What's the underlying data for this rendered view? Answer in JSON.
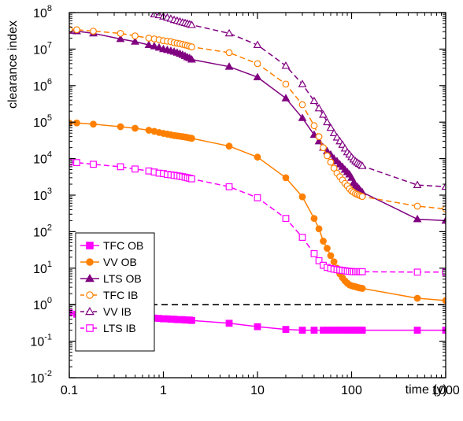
{
  "chart_data": {
    "type": "line",
    "xlabel": "time (y)",
    "ylabel": "clearance index",
    "xscale": "log",
    "yscale": "log",
    "xlim": [
      0.1,
      1000
    ],
    "ylim": [
      0.01,
      100000000
    ],
    "x_ticks": [
      {
        "value": 0.1,
        "label": "0.1"
      },
      {
        "value": 1,
        "label": "1"
      },
      {
        "value": 10,
        "label": "10"
      },
      {
        "value": 100,
        "label": "100"
      },
      {
        "value": 1000,
        "label": "1000"
      }
    ],
    "y_ticks": [
      {
        "value": 0.01,
        "base": "10",
        "exp": "-2"
      },
      {
        "value": 0.1,
        "base": "10",
        "exp": "-1"
      },
      {
        "value": 1,
        "base": "10",
        "exp": "0"
      },
      {
        "value": 10,
        "base": "10",
        "exp": "1"
      },
      {
        "value": 100,
        "base": "10",
        "exp": "2"
      },
      {
        "value": 1000,
        "base": "10",
        "exp": "3"
      },
      {
        "value": 10000,
        "base": "10",
        "exp": "4"
      },
      {
        "value": 100000,
        "base": "10",
        "exp": "5"
      },
      {
        "value": 1000000,
        "base": "10",
        "exp": "6"
      },
      {
        "value": 10000000,
        "base": "10",
        "exp": "7"
      },
      {
        "value": 100000000,
        "base": "10",
        "exp": "8"
      }
    ],
    "reference_line": {
      "y": 1,
      "style": "dashed",
      "color": "#000000"
    },
    "grid": false,
    "legend_position": "bottom-left",
    "series": [
      {
        "name": "TFC OB",
        "color": "#ff00ff",
        "marker": "square",
        "filled": true,
        "dashed": false,
        "x": [
          0.1,
          0.12,
          0.18,
          0.35,
          0.5,
          0.7,
          0.8,
          0.9,
          1.0,
          1.1,
          1.2,
          1.3,
          1.4,
          1.5,
          1.6,
          1.7,
          1.8,
          1.9,
          2.0,
          5,
          10,
          20,
          30,
          40,
          50,
          55,
          60,
          65,
          70,
          75,
          80,
          85,
          90,
          95,
          100,
          105,
          110,
          115,
          120,
          125,
          130,
          500,
          1000
        ],
        "y": [
          0.6,
          0.55,
          0.5,
          0.47,
          0.45,
          0.43,
          0.43,
          0.42,
          0.41,
          0.41,
          0.4,
          0.4,
          0.39,
          0.39,
          0.39,
          0.38,
          0.38,
          0.38,
          0.37,
          0.31,
          0.25,
          0.21,
          0.2,
          0.2,
          0.2,
          0.2,
          0.2,
          0.2,
          0.2,
          0.2,
          0.2,
          0.2,
          0.2,
          0.2,
          0.2,
          0.2,
          0.2,
          0.2,
          0.2,
          0.2,
          0.2,
          0.2,
          0.2
        ]
      },
      {
        "name": "VV OB",
        "color": "#ff8000",
        "marker": "circle",
        "filled": true,
        "dashed": false,
        "x": [
          0.1,
          0.12,
          0.18,
          0.35,
          0.5,
          0.7,
          0.8,
          0.9,
          1.0,
          1.1,
          1.2,
          1.3,
          1.4,
          1.5,
          1.6,
          1.7,
          1.8,
          1.9,
          2.0,
          5,
          10,
          20,
          30,
          40,
          45,
          50,
          55,
          60,
          65,
          70,
          75,
          80,
          85,
          90,
          95,
          100,
          105,
          110,
          115,
          120,
          125,
          130,
          500,
          1000
        ],
        "y": [
          95000,
          95000,
          88000,
          75000,
          68000,
          60000,
          56000,
          52000,
          49000,
          47000,
          45000,
          43000,
          42000,
          41000,
          40000,
          39000,
          38000,
          37000,
          36000,
          22000,
          11000,
          3000,
          900,
          230,
          120,
          55,
          35,
          22,
          15,
          10,
          7,
          5.5,
          4.5,
          3.9,
          3.5,
          3.3,
          3.2,
          3.1,
          3.0,
          2.9,
          2.85,
          2.8,
          1.5,
          1.3
        ]
      },
      {
        "name": "LTS OB",
        "color": "#800080",
        "marker": "triangle",
        "filled": true,
        "dashed": false,
        "x": [
          0.1,
          0.12,
          0.18,
          0.35,
          0.5,
          0.7,
          0.8,
          0.9,
          1.0,
          1.1,
          1.2,
          1.3,
          1.4,
          1.5,
          1.6,
          1.7,
          1.8,
          1.9,
          2.0,
          5,
          10,
          20,
          30,
          40,
          45,
          50,
          55,
          60,
          65,
          70,
          75,
          80,
          85,
          90,
          95,
          100,
          105,
          110,
          115,
          120,
          125,
          130,
          500,
          1000
        ],
        "y": [
          32000000,
          31000000,
          27000000,
          19000000,
          16000000,
          13000000,
          12000000,
          11000000,
          10000000,
          9500000,
          9000000,
          8500000,
          8000000,
          7500000,
          7000000,
          6500000,
          6000000,
          5700000,
          5200000,
          3300000,
          1700000,
          450000,
          130000,
          45000,
          30000,
          20000,
          16000,
          13000,
          10000,
          8500,
          7000,
          6000,
          5000,
          4300,
          3700,
          3000,
          2200,
          1900,
          1700,
          1500,
          1300,
          1200,
          220,
          200
        ]
      },
      {
        "name": "TFC IB",
        "color": "#ff8000",
        "marker": "circle",
        "filled": false,
        "dashed": true,
        "x": [
          0.1,
          0.12,
          0.18,
          0.35,
          0.5,
          0.7,
          0.8,
          0.9,
          1.0,
          1.1,
          1.2,
          1.3,
          1.4,
          1.5,
          1.6,
          1.7,
          1.8,
          1.9,
          2.0,
          5,
          10,
          20,
          30,
          40,
          45,
          50,
          55,
          60,
          65,
          70,
          75,
          80,
          85,
          90,
          95,
          100,
          105,
          110,
          115,
          120,
          125,
          130,
          500,
          1000
        ],
        "y": [
          35000000,
          34000000,
          31000000,
          27000000,
          23000000,
          20000000,
          19000000,
          18000000,
          17000000,
          16500000,
          16000000,
          15000000,
          14500000,
          14000000,
          13500000,
          13000000,
          12500000,
          12000000,
          11500000,
          8000000,
          4000000,
          1100000,
          300000,
          80000,
          40000,
          20000,
          12000,
          8000,
          5500,
          4000,
          3200,
          2600,
          2100,
          1800,
          1500,
          1300,
          1200,
          1100,
          1050,
          1000,
          950,
          920,
          500,
          420
        ]
      },
      {
        "name": "VV IB",
        "color": "#800080",
        "marker": "triangle",
        "filled": false,
        "dashed": true,
        "x": [
          0.8,
          0.9,
          1.0,
          1.1,
          1.2,
          1.3,
          1.4,
          1.5,
          1.6,
          1.7,
          1.8,
          1.9,
          2.0,
          5,
          10,
          20,
          30,
          40,
          45,
          50,
          55,
          60,
          65,
          70,
          75,
          80,
          85,
          90,
          95,
          100,
          105,
          110,
          115,
          120,
          125,
          130,
          500,
          1000
        ],
        "y": [
          90000000,
          85000000,
          78000000,
          73000000,
          68000000,
          63000000,
          60000000,
          57000000,
          54000000,
          52000000,
          50000000,
          48000000,
          46000000,
          27000000,
          13000000,
          3500000,
          1100000,
          380000,
          240000,
          160000,
          100000,
          70000,
          50000,
          38000,
          30000,
          24000,
          19000,
          15000,
          13000,
          11000,
          9500,
          8500,
          7800,
          7200,
          6800,
          6300,
          1900,
          1700
        ]
      },
      {
        "name": "LTS IB",
        "color": "#ff00ff",
        "marker": "square",
        "filled": false,
        "dashed": true,
        "x": [
          0.1,
          0.12,
          0.18,
          0.35,
          0.5,
          0.7,
          0.8,
          0.9,
          1.0,
          1.1,
          1.2,
          1.3,
          1.4,
          1.5,
          1.6,
          1.7,
          1.8,
          1.9,
          2.0,
          5,
          10,
          20,
          30,
          40,
          45,
          50,
          55,
          60,
          65,
          70,
          75,
          80,
          85,
          90,
          95,
          100,
          105,
          110,
          115,
          120,
          125,
          130,
          500,
          1000
        ],
        "y": [
          8000,
          7800,
          7000,
          6000,
          5200,
          4600,
          4300,
          4000,
          3900,
          3700,
          3600,
          3500,
          3400,
          3300,
          3200,
          3100,
          3000,
          2900,
          2800,
          1700,
          850,
          230,
          70,
          25,
          16,
          12,
          10.5,
          9.8,
          9.4,
          9.1,
          8.9,
          8.7,
          8.5,
          8.3,
          8.2,
          8.1,
          8.0,
          8.0,
          8.0,
          8.0,
          8.0,
          8.0,
          7.8,
          7.8
        ]
      }
    ]
  }
}
